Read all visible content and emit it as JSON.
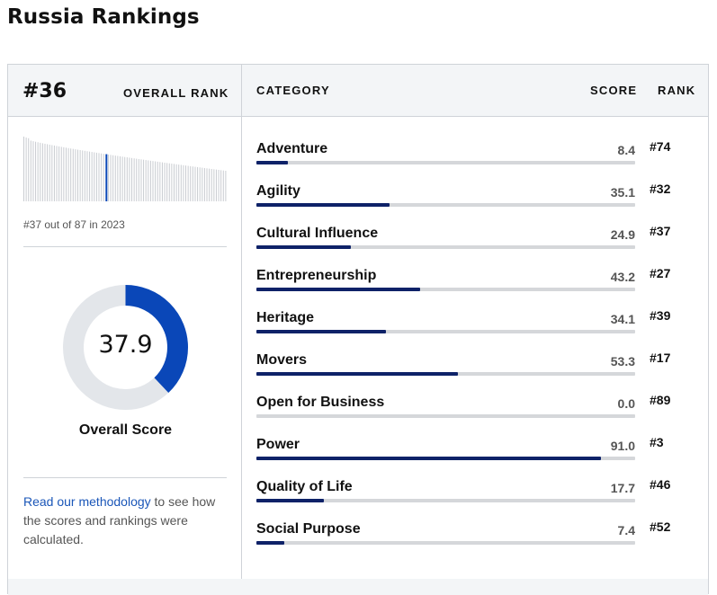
{
  "page": {
    "title": "Russia Rankings"
  },
  "summary": {
    "rank": "#36",
    "overall_rank_label": "OVERALL RANK",
    "rank_note": "#37 out of 87 in 2023",
    "score": "37.9",
    "score_value": 37.9,
    "score_label": "Overall Score",
    "methodology_link": "Read our methodology",
    "methodology_text": " to see how the scores and rankings were calculated."
  },
  "histogram": {
    "total": 87,
    "highlight_position": 36
  },
  "table": {
    "headers": {
      "category": "CATEGORY",
      "score": "SCORE",
      "rank": "RANK"
    },
    "rows": [
      {
        "name": "Adventure",
        "score": "8.4",
        "rank": "#74",
        "value": 8.4
      },
      {
        "name": "Agility",
        "score": "35.1",
        "rank": "#32",
        "value": 35.1
      },
      {
        "name": "Cultural Influence",
        "score": "24.9",
        "rank": "#37",
        "value": 24.9
      },
      {
        "name": "Entrepreneurship",
        "score": "43.2",
        "rank": "#27",
        "value": 43.2
      },
      {
        "name": "Heritage",
        "score": "34.1",
        "rank": "#39",
        "value": 34.1
      },
      {
        "name": "Movers",
        "score": "53.3",
        "rank": "#17",
        "value": 53.3
      },
      {
        "name": "Open for Business",
        "score": "0.0",
        "rank": "#89",
        "value": 0.0
      },
      {
        "name": "Power",
        "score": "91.0",
        "rank": "#3",
        "value": 91.0
      },
      {
        "name": "Quality of Life",
        "score": "17.7",
        "rank": "#46",
        "value": 17.7
      },
      {
        "name": "Social Purpose",
        "score": "7.4",
        "rank": "#52",
        "value": 7.4
      }
    ]
  },
  "colors": {
    "accent": "#0a47b8",
    "bar_fill": "#0e2268",
    "track": "#d5d7da",
    "donut_track": "#e3e6ea",
    "link": "#1a56b8",
    "hist_bar": "#c9ccd1"
  }
}
